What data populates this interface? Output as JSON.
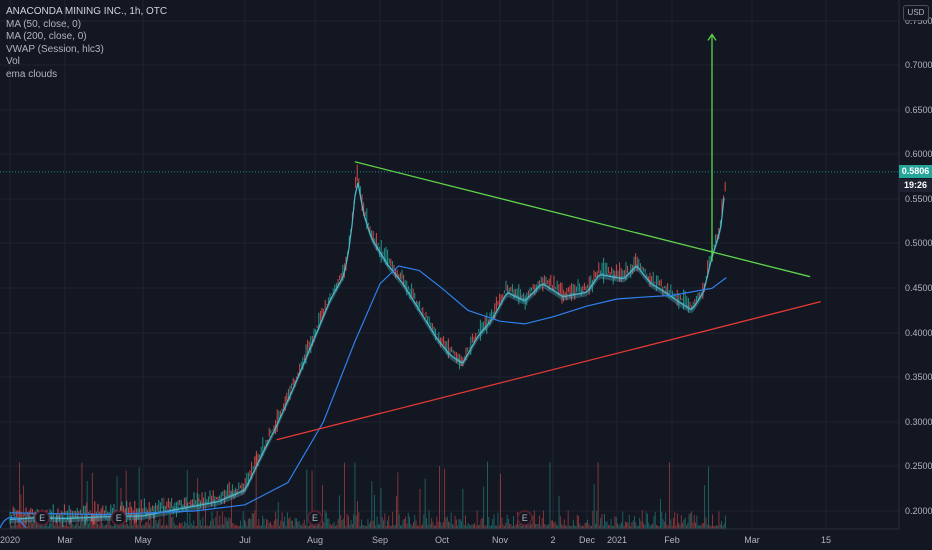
{
  "legend": {
    "title": "ANACONDA MINING INC., 1h, OTC",
    "indicators": [
      "MA (50, close, 0)",
      "MA (200, close, 0)",
      "VWAP (Session, hlc3)",
      "Vol",
      "ema clouds"
    ]
  },
  "currency": "USD",
  "last_price": "0.5806",
  "countdown": "19:26",
  "earnings_marker": "E",
  "colors": {
    "background": "#131722",
    "grid": "#1f2331",
    "up": "#26a69a",
    "down": "#ef5350",
    "ma_blue": "#2f80ed",
    "cloud_teal": "#4fb8c9",
    "resistance": "#5fd34b",
    "support": "#e53935",
    "arrow": "#5fd34b"
  },
  "chart_data": {
    "type": "line",
    "title": "ANACONDA MINING INC., 1h, OTC",
    "x_ticks": [
      "2020",
      "Mar",
      "May",
      "Jul",
      "Aug",
      "Sep",
      "Oct",
      "Nov",
      "2",
      "Dec",
      "2021",
      "Feb",
      "Mar",
      "15"
    ],
    "y_ticks": [
      "0.7500",
      "0.7000",
      "0.6500",
      "0.6000",
      "0.5500",
      "0.5000",
      "0.4500",
      "0.4000",
      "0.3500",
      "0.3000",
      "0.2500",
      "0.2000"
    ],
    "y_range": [
      0.19,
      0.77
    ],
    "price_series": {
      "name": "price",
      "points": [
        [
          "2020-01-01",
          0.195
        ],
        [
          "2020-02-01",
          0.197
        ],
        [
          "2020-03-01",
          0.196
        ],
        [
          "2020-04-01",
          0.198
        ],
        [
          "2020-05-01",
          0.199
        ],
        [
          "2020-06-01",
          0.21
        ],
        [
          "2020-06-15",
          0.215
        ],
        [
          "2020-07-01",
          0.228
        ],
        [
          "2020-07-08",
          0.265
        ],
        [
          "2020-07-15",
          0.3
        ],
        [
          "2020-07-22",
          0.34
        ],
        [
          "2020-08-01",
          0.4
        ],
        [
          "2020-08-08",
          0.44
        ],
        [
          "2020-08-15",
          0.47
        ],
        [
          "2020-08-18",
          0.51
        ],
        [
          "2020-08-21",
          0.58
        ],
        [
          "2020-08-24",
          0.54
        ],
        [
          "2020-08-28",
          0.51
        ],
        [
          "2020-09-05",
          0.48
        ],
        [
          "2020-09-12",
          0.46
        ],
        [
          "2020-09-20",
          0.43
        ],
        [
          "2020-09-28",
          0.4
        ],
        [
          "2020-10-05",
          0.38
        ],
        [
          "2020-10-12",
          0.37
        ],
        [
          "2020-10-20",
          0.4
        ],
        [
          "2020-10-28",
          0.42
        ],
        [
          "2020-11-05",
          0.45
        ],
        [
          "2020-11-15",
          0.44
        ],
        [
          "2020-11-25",
          0.46
        ],
        [
          "2020-12-05",
          0.445
        ],
        [
          "2020-12-15",
          0.45
        ],
        [
          "2020-12-22",
          0.47
        ],
        [
          "2021-01-05",
          0.465
        ],
        [
          "2021-01-12",
          0.48
        ],
        [
          "2021-01-20",
          0.46
        ],
        [
          "2021-01-28",
          0.45
        ],
        [
          "2021-02-03",
          0.44
        ],
        [
          "2021-02-08",
          0.43
        ],
        [
          "2021-02-12",
          0.45
        ],
        [
          "2021-02-15",
          0.49
        ],
        [
          "2021-02-18",
          0.52
        ],
        [
          "2021-02-20",
          0.58
        ]
      ]
    },
    "ma_series": {
      "name": "MA (200, close, 0)",
      "points": [
        [
          "2020-01-01",
          0.198
        ],
        [
          "2020-04-01",
          0.196
        ],
        [
          "2020-06-01",
          0.2
        ],
        [
          "2020-07-01",
          0.207
        ],
        [
          "2020-07-20",
          0.232
        ],
        [
          "2020-08-05",
          0.3
        ],
        [
          "2020-08-20",
          0.39
        ],
        [
          "2020-09-01",
          0.455
        ],
        [
          "2020-09-10",
          0.475
        ],
        [
          "2020-09-20",
          0.47
        ],
        [
          "2020-10-01",
          0.45
        ],
        [
          "2020-10-15",
          0.425
        ],
        [
          "2020-11-01",
          0.413
        ],
        [
          "2020-11-15",
          0.41
        ],
        [
          "2020-12-01",
          0.418
        ],
        [
          "2020-12-15",
          0.43
        ],
        [
          "2021-01-01",
          0.438
        ],
        [
          "2021-01-15",
          0.44
        ],
        [
          "2021-02-01",
          0.442
        ],
        [
          "2021-02-15",
          0.45
        ],
        [
          "2021-02-20",
          0.462
        ]
      ]
    },
    "trendlines": [
      {
        "role": "resistance",
        "from": [
          "2020-08-20",
          0.592
        ],
        "to": [
          "2021-03-12",
          0.463
        ]
      },
      {
        "role": "support",
        "from": [
          "2020-07-15",
          0.28
        ],
        "to": [
          "2021-03-14",
          0.435
        ]
      }
    ],
    "target_arrow": {
      "from": [
        "2021-02-15",
        0.48
      ],
      "to": [
        "2021-02-15",
        0.735
      ]
    },
    "earnings_dates": [
      "2020-02-05",
      "2020-04-12",
      "2020-08-01",
      "2020-11-15"
    ]
  }
}
